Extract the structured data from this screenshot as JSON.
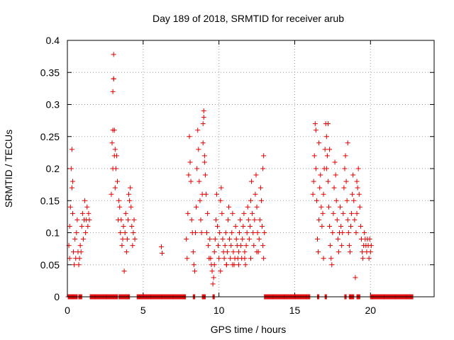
{
  "chart_data": {
    "type": "scatter",
    "title": "Day 189 of 2018, SRMTID for receiver arub",
    "xlabel": "GPS time / hours",
    "ylabel": "SRMTID / TECUs",
    "xlim": [
      0,
      24.2
    ],
    "ylim": [
      0,
      0.4
    ],
    "xticks": [
      0,
      5,
      10,
      15,
      20
    ],
    "xtick_labels": [
      "0",
      "5",
      "10",
      "15",
      "20"
    ],
    "yticks": [
      0,
      0.05,
      0.1,
      0.15,
      0.2,
      0.25,
      0.3,
      0.35,
      0.4
    ],
    "ytick_labels": [
      "0",
      "0.05",
      "0.1",
      "0.15",
      "0.2",
      "0.25",
      "0.3",
      "0.35",
      "0.4"
    ],
    "grid": true,
    "marker": "+",
    "color": "#e00000",
    "series": [
      {
        "name": "SRMTID",
        "x": [
          0.1,
          0.15,
          0.2,
          0.25,
          0.3,
          0.35,
          0.4,
          0.45,
          0.5,
          0.55,
          0.6,
          0.65,
          0.7,
          0.75,
          0.8,
          0.85,
          0.9,
          0.95,
          1.0,
          1.05,
          1.1,
          1.15,
          1.2,
          1.25,
          1.3,
          1.35,
          1.4,
          1.45,
          0.3,
          0.35,
          0.15,
          2.9,
          2.95,
          3.0,
          3.05,
          3.1,
          3.15,
          3.2,
          3.25,
          3.3,
          3.35,
          3.4,
          3.45,
          3.5,
          3.55,
          3.6,
          3.65,
          3.7,
          3.75,
          3.8,
          3.85,
          3.9,
          3.95,
          4.0,
          4.05,
          4.1,
          4.15,
          4.2,
          4.25,
          4.3,
          4.35,
          4.4,
          4.45,
          3.0,
          3.05,
          3.05,
          3.0,
          3.1,
          3.15,
          6.2,
          6.25,
          7.85,
          7.9,
          7.95,
          8.0,
          8.05,
          8.1,
          8.15,
          8.2,
          8.25,
          8.3,
          8.35,
          8.4,
          8.45,
          8.5,
          8.55,
          8.6,
          8.65,
          8.7,
          8.75,
          8.8,
          8.85,
          8.9,
          8.95,
          9.0,
          9.05,
          9.1,
          9.15,
          9.2,
          9.25,
          9.3,
          9.35,
          8.95,
          9.0,
          9.05,
          9.4,
          9.45,
          9.5,
          9.55,
          9.6,
          9.65,
          9.7,
          9.75,
          9.8,
          9.85,
          9.9,
          9.95,
          10.0,
          10.05,
          10.1,
          10.15,
          10.2,
          10.25,
          10.3,
          10.35,
          10.4,
          10.45,
          10.5,
          10.55,
          10.6,
          10.65,
          10.7,
          10.75,
          10.8,
          10.85,
          10.9,
          10.95,
          11.0,
          11.05,
          11.1,
          11.15,
          11.2,
          11.25,
          11.3,
          11.35,
          11.4,
          11.45,
          11.5,
          11.55,
          11.6,
          11.65,
          11.7,
          11.75,
          11.8,
          11.85,
          11.9,
          11.95,
          12.0,
          12.05,
          12.1,
          12.15,
          12.2,
          12.25,
          12.3,
          12.35,
          12.4,
          12.45,
          12.5,
          12.55,
          12.6,
          12.65,
          12.7,
          12.75,
          12.8,
          12.85,
          12.9,
          12.95,
          13.0,
          12.95,
          12.9,
          9.7,
          10.1,
          10.5,
          10.9,
          11.3,
          11.7,
          12.1,
          12.5,
          16.2,
          16.25,
          16.3,
          16.35,
          16.4,
          16.45,
          16.5,
          16.55,
          16.6,
          16.65,
          16.7,
          16.75,
          16.8,
          16.85,
          16.9,
          16.95,
          17.0,
          17.05,
          17.1,
          17.15,
          17.2,
          17.25,
          17.3,
          17.35,
          17.4,
          17.45,
          17.5,
          17.55,
          17.6,
          17.65,
          17.7,
          17.75,
          17.8,
          17.85,
          17.9,
          17.95,
          18.0,
          18.05,
          18.1,
          18.15,
          18.2,
          18.25,
          18.3,
          18.35,
          18.4,
          18.45,
          18.5,
          18.55,
          18.6,
          18.65,
          18.7,
          18.75,
          18.8,
          18.85,
          18.9,
          18.95,
          19.0,
          19.05,
          19.1,
          19.15,
          19.2,
          19.25,
          19.3,
          19.35,
          19.4,
          19.45,
          19.5,
          19.55,
          19.6,
          19.65,
          19.7,
          19.75,
          19.8,
          19.85,
          19.9,
          19.95,
          20.0,
          20.05,
          16.4,
          16.6,
          16.9,
          17.2,
          17.1,
          17.3,
          18.5,
          19.1
        ],
        "y": [
          0.08,
          0.06,
          0.14,
          0.2,
          0.23,
          0.13,
          0.07,
          0.05,
          0.09,
          0.06,
          0.1,
          0.12,
          0.07,
          0.05,
          0.06,
          0.08,
          0.07,
          0.11,
          0.13,
          0.09,
          0.12,
          0.15,
          0.1,
          0.12,
          0.14,
          0.11,
          0.13,
          0.12,
          0.17,
          0.18,
          0.11,
          0.16,
          0.24,
          0.26,
          0.34,
          0.26,
          0.23,
          0.2,
          0.22,
          0.18,
          0.12,
          0.15,
          0.14,
          0.1,
          0.12,
          0.08,
          0.09,
          0.11,
          0.04,
          0.1,
          0.13,
          0.07,
          0.09,
          0.12,
          0.16,
          0.15,
          0.17,
          0.14,
          0.11,
          0.08,
          0.1,
          0.12,
          0.09,
          0.32,
          0.378,
          0.34,
          0.2,
          0.22,
          0.17,
          0.078,
          0.068,
          0.09,
          0.06,
          0.13,
          0.19,
          0.25,
          0.21,
          0.18,
          0.12,
          0.1,
          0.07,
          0.05,
          0.04,
          0.1,
          0.14,
          0.2,
          0.26,
          0.23,
          0.18,
          0.15,
          0.12,
          0.1,
          0.16,
          0.24,
          0.28,
          0.22,
          0.19,
          0.16,
          0.1,
          0.13,
          0.08,
          0.06,
          0.27,
          0.29,
          0.21,
          0.09,
          0.06,
          0.05,
          0.04,
          0.02,
          0.03,
          0.07,
          0.09,
          0.12,
          0.16,
          0.11,
          0.08,
          0.06,
          0.1,
          0.15,
          0.17,
          0.13,
          0.09,
          0.07,
          0.06,
          0.08,
          0.1,
          0.05,
          0.07,
          0.12,
          0.14,
          0.09,
          0.06,
          0.08,
          0.1,
          0.13,
          0.07,
          0.05,
          0.06,
          0.11,
          0.09,
          0.08,
          0.06,
          0.07,
          0.1,
          0.12,
          0.08,
          0.06,
          0.09,
          0.11,
          0.13,
          0.07,
          0.05,
          0.08,
          0.1,
          0.14,
          0.12,
          0.09,
          0.11,
          0.15,
          0.18,
          0.13,
          0.1,
          0.08,
          0.12,
          0.16,
          0.19,
          0.14,
          0.1,
          0.07,
          0.09,
          0.12,
          0.17,
          0.15,
          0.11,
          0.08,
          0.06,
          0.1,
          0.22,
          0.2,
          0.05,
          0.04,
          0.05,
          0.05,
          0.05,
          0.06,
          0.06,
          0.07,
          0.16,
          0.18,
          0.22,
          0.27,
          0.2,
          0.15,
          0.09,
          0.07,
          0.12,
          0.17,
          0.19,
          0.14,
          0.11,
          0.13,
          0.16,
          0.2,
          0.23,
          0.27,
          0.25,
          0.22,
          0.18,
          0.14,
          0.11,
          0.08,
          0.06,
          0.05,
          0.1,
          0.13,
          0.17,
          0.21,
          0.19,
          0.15,
          0.12,
          0.09,
          0.07,
          0.1,
          0.14,
          0.11,
          0.08,
          0.1,
          0.13,
          0.17,
          0.2,
          0.22,
          0.18,
          0.15,
          0.12,
          0.1,
          0.08,
          0.07,
          0.11,
          0.13,
          0.16,
          0.19,
          0.15,
          0.12,
          0.03,
          0.1,
          0.13,
          0.17,
          0.2,
          0.16,
          0.14,
          0.11,
          0.09,
          0.07,
          0.06,
          0.08,
          0.1,
          0.09,
          0.08,
          0.07,
          0.09,
          0.08,
          0.06,
          0.09,
          0.07,
          0.08,
          0.26,
          0.24,
          0.06,
          0.27,
          0.2,
          0.23,
          0.24,
          0.18
        ],
        "zero_segments": [
          [
            0.05,
            0.65
          ],
          [
            0.75,
            0.95
          ],
          [
            1.5,
            3.3
          ],
          [
            3.4,
            4.1
          ],
          [
            4.6,
            7.8
          ],
          [
            8.3,
            8.4
          ],
          [
            8.9,
            9.1
          ],
          [
            9.6,
            9.7
          ],
          [
            13.0,
            16.0
          ],
          [
            16.5,
            16.6
          ],
          [
            17.0,
            17.1
          ],
          [
            18.3,
            18.4
          ],
          [
            18.6,
            18.9
          ],
          [
            19.1,
            19.3
          ],
          [
            20.0,
            22.8
          ]
        ]
      }
    ]
  }
}
